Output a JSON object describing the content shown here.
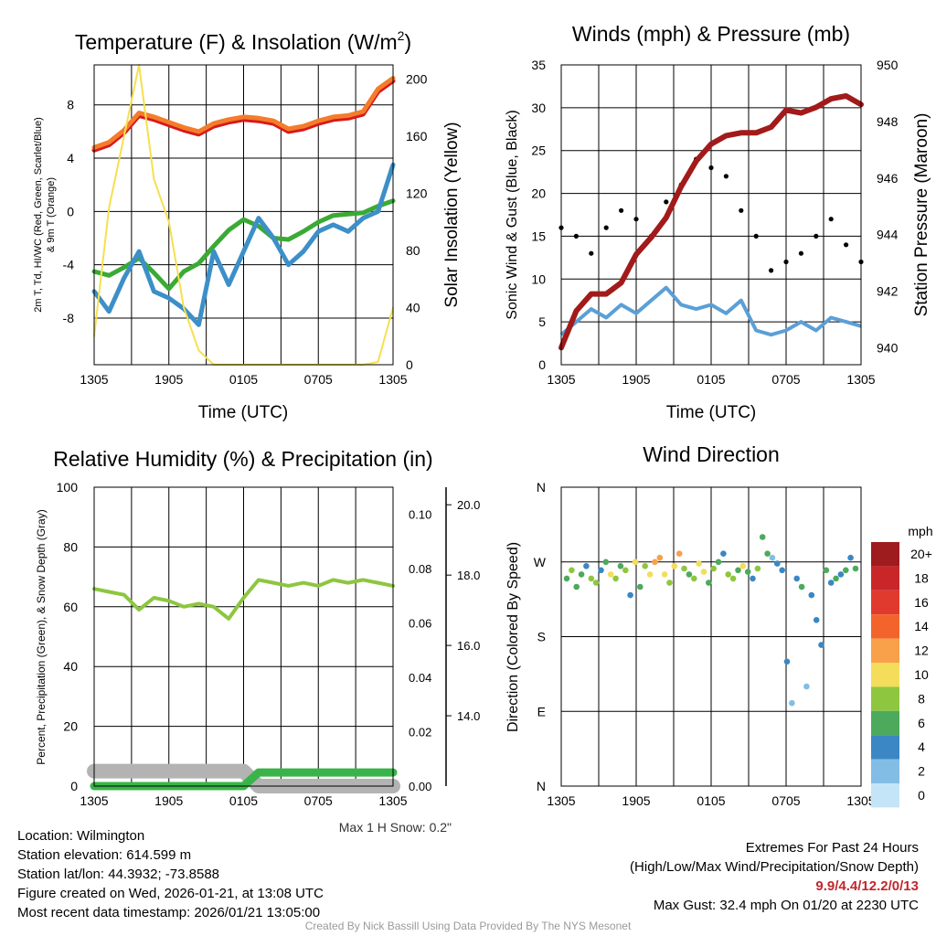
{
  "chart_data": [
    {
      "type": "line",
      "title": "Temperature (F) & Insolation (W/m2)",
      "title_prefix": "Temperature (F) & Insolation (W/m",
      "title_sup": "2",
      "title_suffix": ")",
      "xlabel": "Time (UTC)",
      "x_ticks": [
        "1305",
        "1905",
        "0105",
        "0705",
        "1305"
      ],
      "ylabel_lines": [
        "2m T, Td, HI/WC (Red, Green, Scarlet/Blue)",
        "& 9m T (Orange)"
      ],
      "ylim": [
        -11.5,
        11
      ],
      "y_ticks": [
        -8,
        -4,
        0,
        4,
        8
      ],
      "y2label": "Solar Insolation (Yellow)",
      "y2lim": [
        0,
        210
      ],
      "y2_ticks": [
        0,
        40,
        80,
        120,
        160,
        200
      ],
      "series": [
        {
          "name": "2m T",
          "color": "#d7191c",
          "values": [
            4.6,
            5.0,
            5.9,
            7.2,
            6.9,
            6.5,
            6.1,
            5.8,
            6.4,
            6.7,
            6.9,
            6.8,
            6.6,
            6.0,
            6.2,
            6.6,
            6.9,
            7.0,
            7.3,
            9.0,
            9.8
          ]
        },
        {
          "name": "9m T",
          "color": "#f47c2a",
          "values": [
            4.8,
            5.2,
            6.1,
            7.4,
            7.1,
            6.7,
            6.3,
            6.0,
            6.6,
            6.9,
            7.1,
            7.0,
            6.8,
            6.2,
            6.4,
            6.8,
            7.1,
            7.2,
            7.5,
            9.2,
            10.0
          ]
        },
        {
          "name": "Td",
          "color": "#3aaa35",
          "values": [
            -4.5,
            -4.8,
            -4.2,
            -3.5,
            -4.6,
            -5.8,
            -4.5,
            -3.9,
            -2.6,
            -1.4,
            -0.6,
            -1.1,
            -2.0,
            -2.1,
            -1.5,
            -0.8,
            -0.3,
            -0.2,
            -0.1,
            0.4,
            0.8
          ]
        },
        {
          "name": "HI/WC",
          "color": "#3c8fc8",
          "values": [
            -6.0,
            -7.5,
            -5.0,
            -3.0,
            -6.0,
            -6.5,
            -7.3,
            -8.5,
            -3.0,
            -5.5,
            -3.0,
            -0.5,
            -2.0,
            -4.0,
            -3.0,
            -1.5,
            -1.0,
            -1.5,
            -0.5,
            0.0,
            3.5
          ]
        },
        {
          "name": "Solar Insolation",
          "color": "#f5e050",
          "axis": "right",
          "values": [
            20,
            110,
            160,
            210,
            130,
            100,
            40,
            10,
            0,
            0,
            0,
            0,
            0,
            0,
            0,
            0,
            0,
            0,
            0,
            2,
            40
          ]
        }
      ]
    },
    {
      "type": "scatter",
      "title": "Winds (mph) & Pressure (mb)",
      "xlabel": "Time (UTC)",
      "x_ticks": [
        "1305",
        "1905",
        "0105",
        "0705",
        "1305"
      ],
      "ylabel": "Sonic Wind & Gust (Blue, Black)",
      "ylim": [
        0,
        35
      ],
      "y_ticks": [
        0,
        5,
        10,
        15,
        20,
        25,
        30,
        35
      ],
      "y2label": "Station Pressure (Maroon)",
      "y2lim": [
        939.4,
        950
      ],
      "y2_ticks": [
        940,
        942,
        944,
        946,
        948,
        950
      ],
      "series": [
        {
          "name": "Sonic Wind",
          "color": "#5b9fd6",
          "values": [
            3.5,
            5.0,
            6.5,
            5.5,
            7.0,
            6.0,
            7.5,
            9.0,
            7.0,
            6.5,
            7.0,
            6.0,
            7.5,
            4.0,
            3.5,
            4.0,
            5.0,
            4.0,
            5.5,
            5.0,
            4.5
          ]
        },
        {
          "name": "Gust",
          "color": "#000000",
          "values": [
            16,
            15,
            13,
            16,
            18,
            17,
            15,
            19,
            21,
            24,
            23,
            22,
            18,
            15,
            11,
            12,
            13,
            15,
            17,
            14,
            12
          ]
        },
        {
          "name": "Station Pressure",
          "color": "#a21a1a",
          "axis": "right",
          "values": [
            940.0,
            941.3,
            941.9,
            941.9,
            942.3,
            943.3,
            943.9,
            944.6,
            945.7,
            946.6,
            947.2,
            947.5,
            947.6,
            947.6,
            947.8,
            948.4,
            948.3,
            948.5,
            948.8,
            948.9,
            948.6
          ]
        }
      ]
    },
    {
      "type": "line",
      "title": "Relative Humidity (%) & Precipitation (in)",
      "x_ticks": [
        "1305",
        "1905",
        "0105",
        "0705",
        "1305"
      ],
      "ylabel": "Percent, Precipitation (Green), & Snow Depth (Gray)",
      "ylim": [
        0,
        100
      ],
      "y_ticks": [
        0,
        20,
        40,
        60,
        80,
        100
      ],
      "y2lim": [
        0,
        0.11
      ],
      "y2_ticks": [
        "0.00",
        "0.02",
        "0.04",
        "0.06",
        "0.08",
        "0.10"
      ],
      "y3lim": [
        12.0,
        20.5
      ],
      "y3_ticks": [
        "14.0",
        "16.0",
        "18.0",
        "20.0"
      ],
      "snow_note": "Max 1 H Snow: 0.2\"",
      "series": [
        {
          "name": "Relative Humidity",
          "color": "#8dc63f",
          "values": [
            66,
            65,
            64,
            59,
            63,
            62,
            60,
            61,
            60,
            56,
            63,
            69,
            68,
            67,
            68,
            67,
            69,
            68,
            69,
            68,
            67
          ]
        },
        {
          "name": "Precipitation",
          "color": "#3ab449",
          "values": [
            0,
            0,
            0,
            0,
            0,
            0,
            0,
            0,
            0,
            0,
            0,
            0.005,
            0.005,
            0.005,
            0.005,
            0.005,
            0.005,
            0.005,
            0.005,
            0.005,
            0.005
          ]
        },
        {
          "name": "Snow Depth",
          "color": "#b3b3b3",
          "values": [
            5,
            5,
            5,
            5,
            5,
            5,
            5,
            5,
            5,
            5,
            5,
            0,
            0,
            0,
            0,
            0,
            0,
            0,
            0,
            0,
            0
          ]
        }
      ]
    },
    {
      "type": "scatter",
      "title": "Wind Direction",
      "x_ticks": [
        "1305",
        "1905",
        "0105",
        "0705",
        "1305"
      ],
      "ylabel": "Direction (Colored By Speed)",
      "y_ticks": [
        "N",
        "E",
        "S",
        "W",
        "N"
      ],
      "ylim": [
        0,
        360
      ],
      "direction_values": [
        250,
        260,
        240,
        255,
        265,
        250,
        245,
        260,
        270,
        255,
        250,
        265,
        260,
        230,
        270,
        240,
        265,
        255,
        270,
        275,
        255,
        245,
        265,
        280,
        262,
        255,
        250,
        268,
        258,
        245,
        262,
        270,
        280,
        255,
        250,
        260,
        265,
        258,
        250,
        262,
        300,
        280,
        275,
        268,
        260,
        150,
        100,
        250,
        240,
        120,
        230,
        200,
        170,
        260,
        245,
        250,
        255,
        260,
        275,
        262
      ],
      "speed_values": [
        6,
        7,
        5,
        6,
        4,
        8,
        7,
        3,
        6,
        9,
        7,
        5,
        8,
        4,
        10,
        6,
        7,
        9,
        11,
        12,
        10,
        8,
        9,
        11,
        7,
        6,
        8,
        10,
        9,
        5,
        7,
        6,
        3,
        8,
        7,
        5,
        9,
        6,
        4,
        7,
        5,
        6,
        2,
        4,
        3,
        3,
        1,
        4,
        5,
        2,
        4,
        3,
        4,
        5,
        4,
        6,
        3,
        5,
        4,
        6
      ],
      "colorbar": {
        "title": "mph",
        "labels": [
          "20+",
          "18",
          "16",
          "14",
          "12",
          "10",
          "8",
          "6",
          "4",
          "2",
          "0"
        ],
        "colors": [
          "#9e1b1e",
          "#c9262a",
          "#e03a2f",
          "#f2642c",
          "#f8a04a",
          "#f3dd5a",
          "#8ec63f",
          "#4daa5c",
          "#3a87c4",
          "#82bde6",
          "#c4e4f7"
        ]
      }
    }
  ],
  "info_left": [
    "Location: Wilmington",
    "Station elevation: 614.599 m",
    "Station lat/lon: 44.3932; -73.8588",
    "Figure created on Wed, 2026-01-21, at 13:08 UTC",
    "Most recent data timestamp: 2026/01/21 13:05:00"
  ],
  "extremes": {
    "title": "Extremes For Past 24 Hours",
    "subtitle": "(High/Low/Max Wind/Precipitation/Snow Depth)",
    "values": "9.9/4.4/12.2/0/13",
    "max_gust": "Max Gust: 32.4 mph On 01/20 at 2230 UTC"
  },
  "credit": "Created By Nick Bassill Using Data Provided By The NYS Mesonet"
}
